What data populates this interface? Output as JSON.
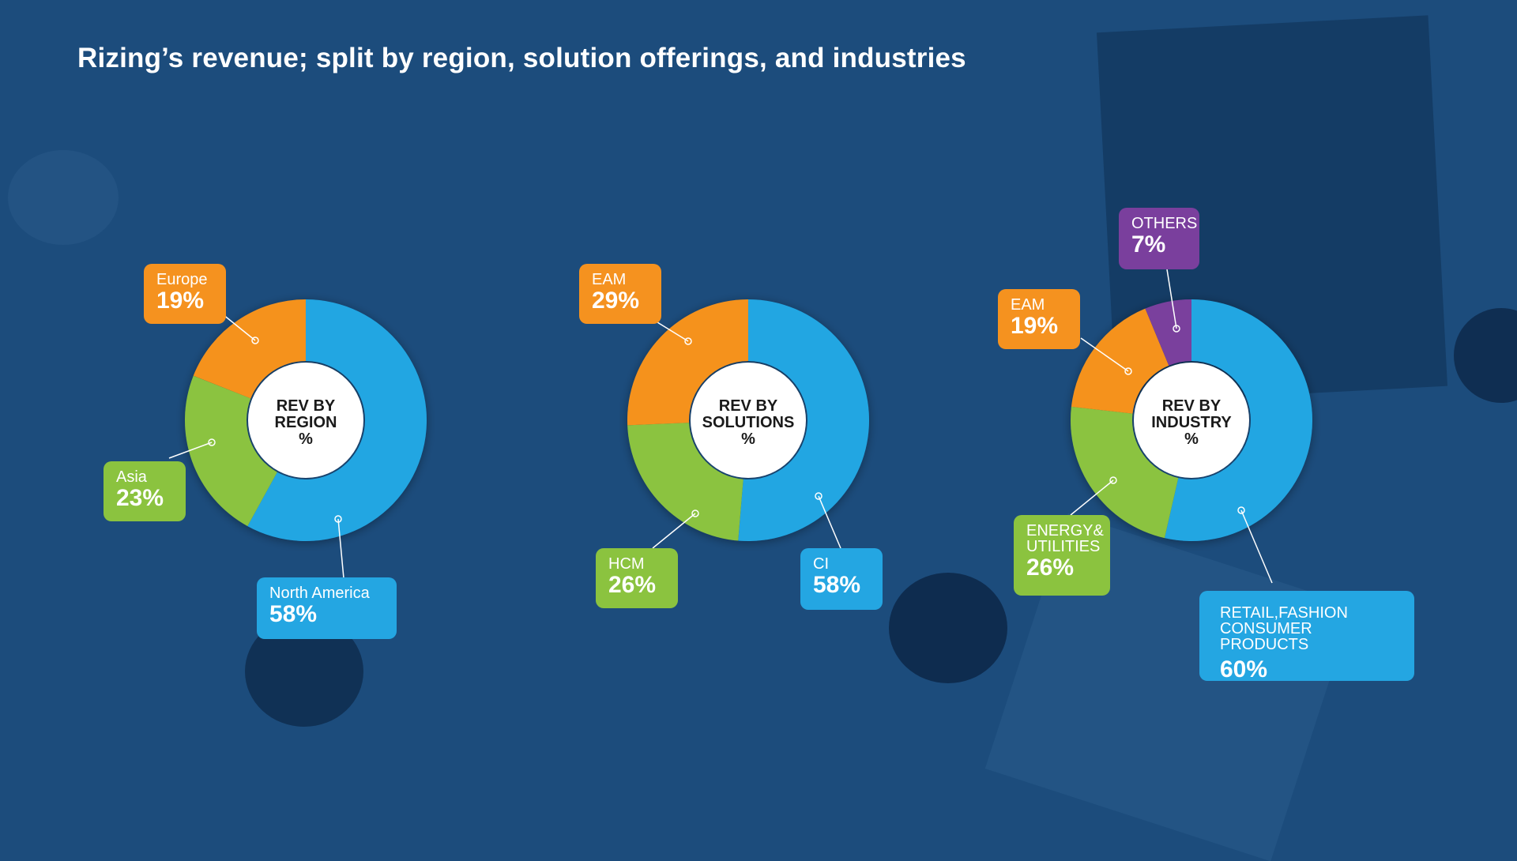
{
  "title": "Rizing’s revenue; split by region, solution offerings, and industries",
  "colors": {
    "background": "#1c4c7c",
    "blue": "#24a6e2",
    "orange": "#f5921f",
    "green": "#8bc33f",
    "purple": "#7a3f9d",
    "center": "#ffffff"
  },
  "chart_data": [
    {
      "type": "pie",
      "title": "REV BY REGION %",
      "center_lines": [
        "REV BY",
        "REGION",
        "%"
      ],
      "slices": [
        {
          "name": "North America",
          "value": 58,
          "label": "58%",
          "color": "#24a6e2"
        },
        {
          "name": "Asia",
          "value": 23,
          "label": "23%",
          "color": "#8bc33f"
        },
        {
          "name": "Europe",
          "value": 19,
          "label": "19%",
          "color": "#f5921f"
        }
      ]
    },
    {
      "type": "pie",
      "title": "REV BY SOLUTIONS %",
      "center_lines": [
        "REV BY",
        "SOLUTIONS",
        "%"
      ],
      "slices": [
        {
          "name": "CI",
          "value": 58,
          "label": "58%",
          "color": "#24a6e2"
        },
        {
          "name": "HCM",
          "value": 26,
          "label": "26%",
          "color": "#8bc33f"
        },
        {
          "name": "EAM",
          "value": 29,
          "label": "29%",
          "color": "#f5921f"
        }
      ]
    },
    {
      "type": "pie",
      "title": "REV BY INDUSTRY %",
      "center_lines": [
        "REV BY",
        "INDUSTRY",
        "%"
      ],
      "slices": [
        {
          "name": "RETAIL,FASHION\nCONSUMER PRODUCTS",
          "value": 60,
          "label": "60%",
          "color": "#24a6e2"
        },
        {
          "name": "ENERGY&\nUTILITIES",
          "value": 26,
          "label": "26%",
          "color": "#8bc33f"
        },
        {
          "name": "EAM",
          "value": 19,
          "label": "19%",
          "color": "#f5921f"
        },
        {
          "name": "OTHERS",
          "value": 7,
          "label": "7%",
          "color": "#7a3f9d"
        }
      ]
    }
  ]
}
